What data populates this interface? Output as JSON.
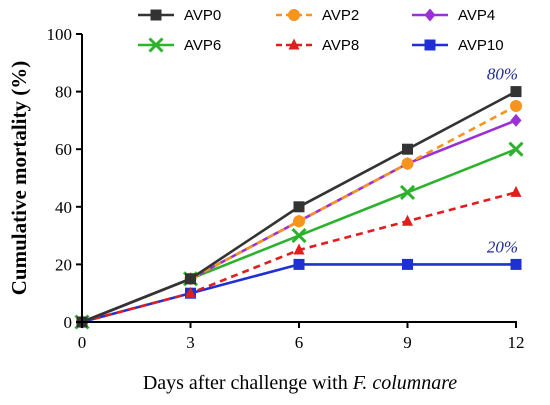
{
  "chart_data": {
    "type": "line",
    "x": [
      0,
      3,
      6,
      9,
      12
    ],
    "xlabel_prefix": "Days after challenge with ",
    "xlabel_italic": "F. columnare",
    "ylabel": "Cumulative mortality (%)",
    "xlim": [
      0,
      12
    ],
    "ylim": [
      0,
      100
    ],
    "xticks": [
      "0",
      "3",
      "6",
      "9",
      "12"
    ],
    "yticks": [
      "0",
      "20",
      "40",
      "60",
      "80",
      "100"
    ],
    "legend_position": "top",
    "grid": false,
    "series": [
      {
        "name": "AVP0",
        "values": [
          0,
          15,
          40,
          60,
          80
        ],
        "color": "#333333",
        "marker": "square",
        "dash": "solid"
      },
      {
        "name": "AVP2",
        "values": [
          0,
          15,
          35,
          55,
          75
        ],
        "color": "#f7941d",
        "marker": "circle",
        "dash": "dashed"
      },
      {
        "name": "AVP4",
        "values": [
          0,
          15,
          35,
          55,
          70
        ],
        "color": "#9b30d9",
        "marker": "diamond",
        "dash": "solid"
      },
      {
        "name": "AVP6",
        "values": [
          0,
          15,
          30,
          45,
          60
        ],
        "color": "#2cb22c",
        "marker": "x",
        "dash": "solid"
      },
      {
        "name": "AVP8",
        "values": [
          0,
          10,
          25,
          35,
          45
        ],
        "color": "#e01e1e",
        "marker": "triangle",
        "dash": "dashed"
      },
      {
        "name": "AVP10",
        "values": [
          0,
          10,
          20,
          20,
          20
        ],
        "color": "#1f2fd6",
        "marker": "square",
        "dash": "solid"
      }
    ],
    "annotations": [
      {
        "text": "80%",
        "x": 12,
        "y": 80,
        "color": "#1f2c8f"
      },
      {
        "text": "20%",
        "x": 12,
        "y": 20,
        "color": "#1f2c8f"
      }
    ]
  }
}
